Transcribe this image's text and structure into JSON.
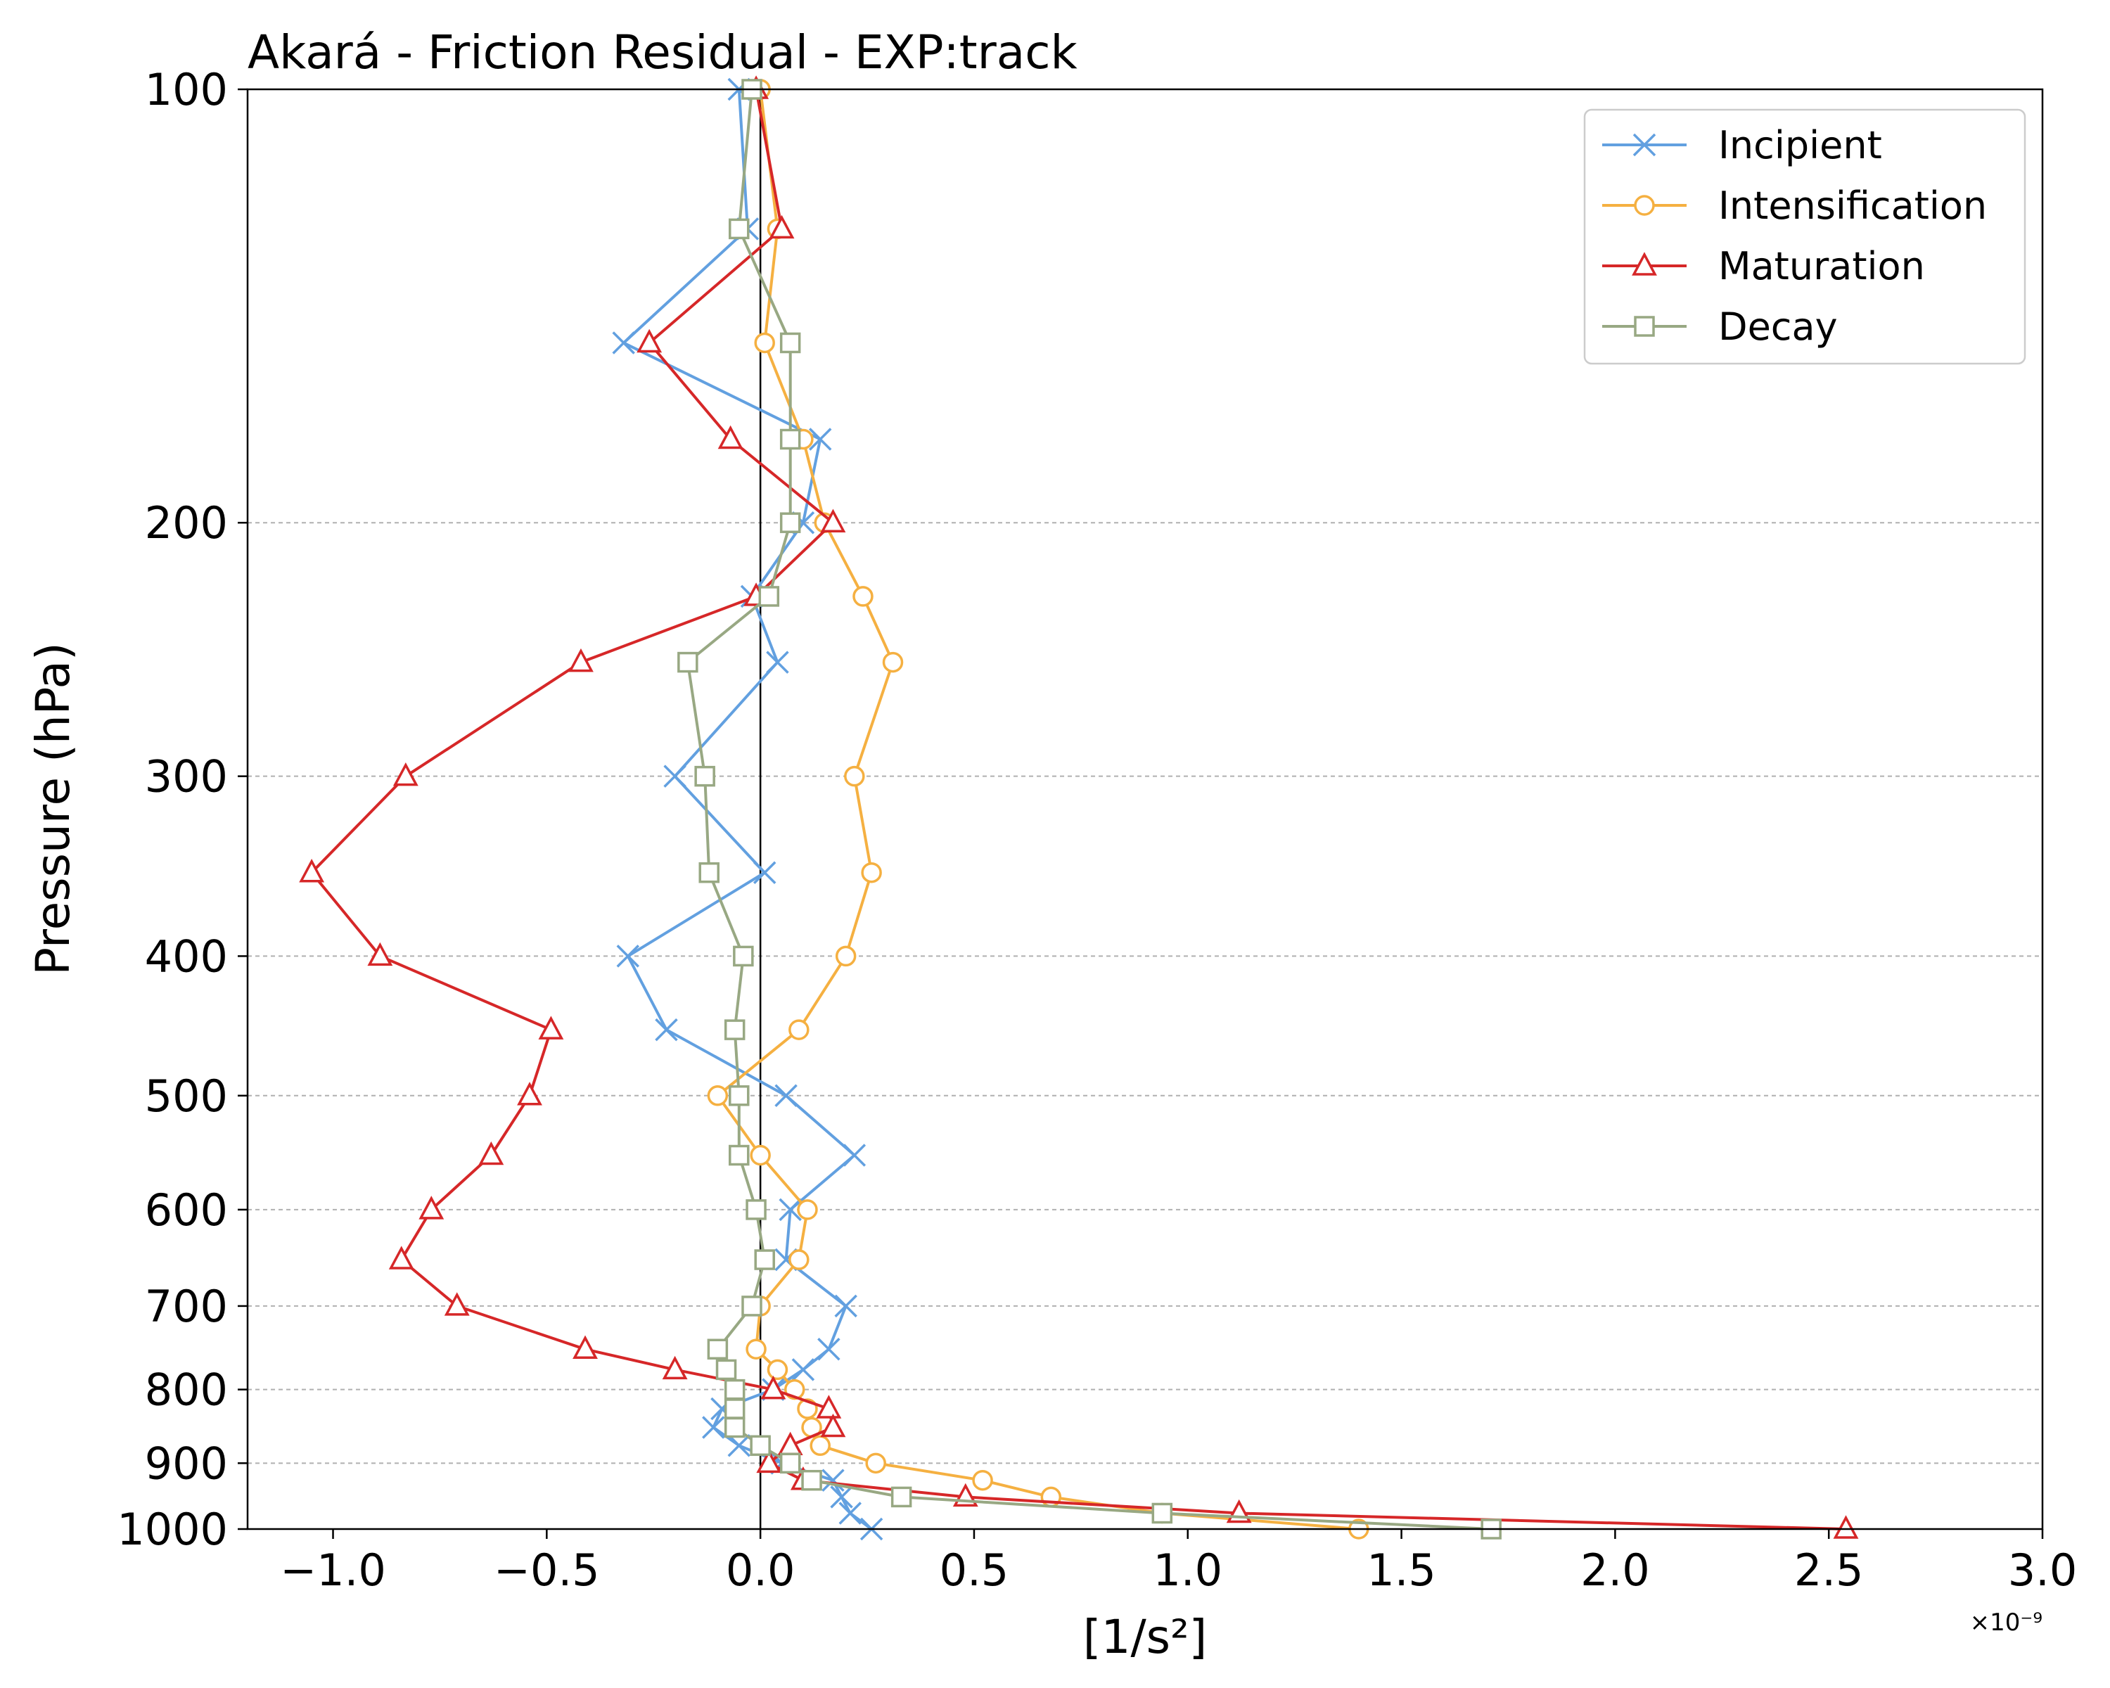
{
  "chart_data": {
    "type": "line",
    "title": "Akará - Friction Residual - EXP:track",
    "xlabel": "[1/s²]",
    "ylabel": "Pressure (hPa)",
    "x_offset_label": "×10⁻⁹",
    "x_scale": 1e-09,
    "xlim": [
      -1.2,
      3.0
    ],
    "ylim": [
      1000,
      100
    ],
    "y_scale": "log",
    "x_ticks": [
      -1.0,
      -0.5,
      0.0,
      0.5,
      1.0,
      1.5,
      2.0,
      2.5,
      3.0
    ],
    "x_tick_labels": [
      "−1.0",
      "−0.5",
      "0.0",
      "0.5",
      "1.0",
      "1.5",
      "2.0",
      "2.5",
      "3.0"
    ],
    "y_ticks": [
      100,
      200,
      300,
      400,
      500,
      600,
      700,
      800,
      900,
      1000
    ],
    "y_tick_labels": [
      "100",
      "200",
      "300",
      "400",
      "500",
      "600",
      "700",
      "800",
      "900",
      "1000"
    ],
    "grid": "horizontal dashed at y ticks",
    "zero_line": true,
    "legend_position": "top-right",
    "pressure_levels": [
      100,
      125,
      150,
      175,
      200,
      225,
      250,
      300,
      350,
      400,
      450,
      500,
      550,
      600,
      650,
      700,
      750,
      775,
      800,
      825,
      850,
      875,
      900,
      925,
      950,
      975,
      1000
    ],
    "series": [
      {
        "name": "Incipient",
        "color": "#62a0e0",
        "marker": "x",
        "values": [
          -0.05,
          -0.03,
          -0.32,
          0.14,
          0.1,
          -0.02,
          0.04,
          -0.2,
          0.01,
          -0.31,
          -0.22,
          0.06,
          0.22,
          0.07,
          0.06,
          0.2,
          0.16,
          0.1,
          0.03,
          -0.09,
          -0.11,
          -0.05,
          0.05,
          0.17,
          0.19,
          0.21,
          0.26
        ]
      },
      {
        "name": "Intensification",
        "color": "#f5b041",
        "marker": "o",
        "values": [
          0.0,
          0.04,
          0.01,
          0.1,
          0.15,
          0.24,
          0.31,
          0.22,
          0.26,
          0.2,
          0.09,
          -0.1,
          0.0,
          0.11,
          0.09,
          0.0,
          -0.01,
          0.04,
          0.08,
          0.11,
          0.12,
          0.14,
          0.27,
          0.52,
          0.68,
          0.94,
          1.4
        ]
      },
      {
        "name": "Maturation",
        "color": "#d62728",
        "marker": "^",
        "values": [
          -0.01,
          0.05,
          -0.26,
          -0.07,
          0.17,
          -0.01,
          -0.42,
          -0.83,
          -1.05,
          -0.89,
          -0.49,
          -0.54,
          -0.63,
          -0.77,
          -0.84,
          -0.71,
          -0.41,
          -0.2,
          0.03,
          0.16,
          0.17,
          0.07,
          0.02,
          0.1,
          0.48,
          1.12,
          2.54
        ]
      },
      {
        "name": "Decay",
        "color": "#98a883",
        "marker": "s",
        "values": [
          -0.02,
          -0.05,
          0.07,
          0.07,
          0.07,
          0.02,
          -0.17,
          -0.13,
          -0.12,
          -0.04,
          -0.06,
          -0.05,
          -0.05,
          -0.01,
          0.01,
          -0.02,
          -0.1,
          -0.08,
          -0.06,
          -0.06,
          -0.06,
          0.0,
          0.07,
          0.12,
          0.33,
          0.94,
          1.71
        ]
      }
    ]
  }
}
